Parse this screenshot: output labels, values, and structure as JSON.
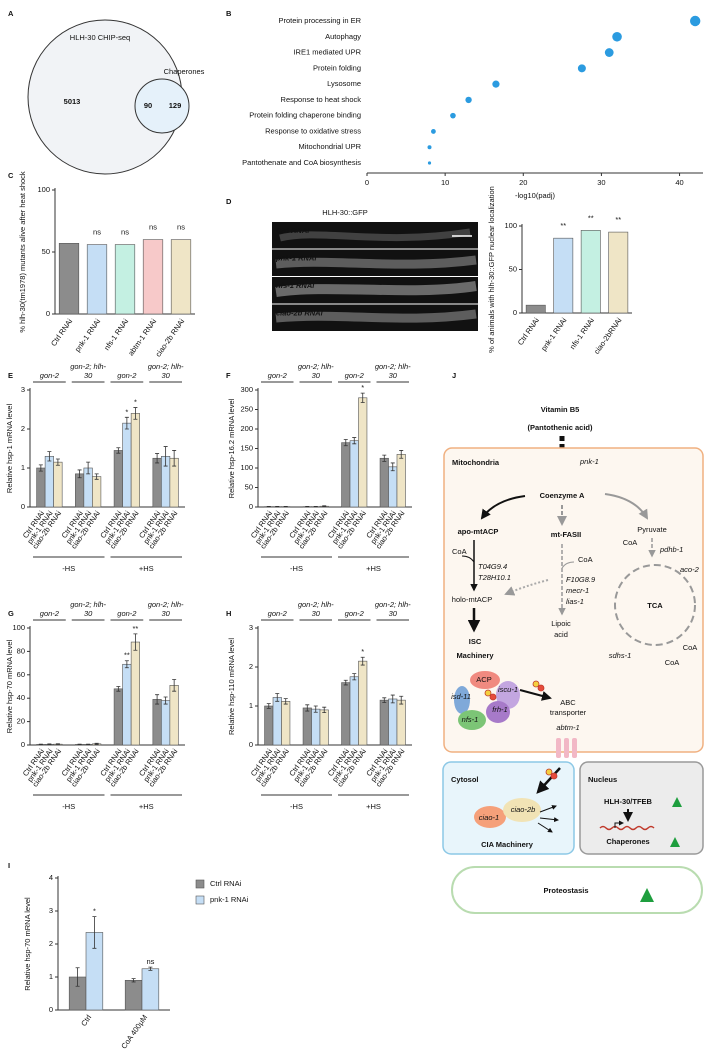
{
  "panel_labels": [
    "A",
    "B",
    "C",
    "D",
    "E",
    "F",
    "G",
    "H",
    "I",
    "J"
  ],
  "venn": {
    "title": "HLH-30 CHIP-seq",
    "set_label": "Chaperones",
    "counts": [
      5013,
      90,
      129
    ]
  },
  "micrograph": {
    "title": "HLH-30::GFP",
    "labels": [
      "Ctrl RNAi",
      "pnk-1 RNAi",
      "nfs-1 RNAi",
      "ciao-2b RNAi"
    ]
  },
  "chart_data": [
    {
      "type": "dot",
      "categories": [
        "Protein processing in ER",
        "Autophagy",
        "IRE1 mediated UPR",
        "Protein folding",
        "Lysosome",
        "Response to heat shock",
        "Protein folding chaperone binding",
        "Response to oxidative stress",
        "Mitochondrial UPR",
        "Pantothenate and CoA biosynthesis"
      ],
      "values": [
        42,
        32,
        31,
        27.5,
        16.5,
        13,
        11,
        8.5,
        8,
        8
      ],
      "color": "#2b9be0",
      "xlim": [
        0,
        43
      ],
      "xticks": [
        0,
        10,
        20,
        30,
        40
      ],
      "x_label": "-log10(padj)"
    },
    {
      "type": "bar",
      "y_label": "% hlh-30(tm1978) mutants alive after heat shock",
      "categories": [
        "Ctrl RNAi",
        "pnk-1 RNAi",
        "nfs-1 RNAi",
        "abtm-1 RNAi",
        "ciao-2b RNAi"
      ],
      "values": [
        57,
        56,
        56,
        60,
        60
      ],
      "colors": [
        "#8c8c8c",
        "#c5def5",
        "#c4f0e2",
        "#f7c9c9",
        "#efe5c6"
      ],
      "annotations": [
        null,
        "ns",
        "ns",
        "ns",
        "ns"
      ],
      "ylim": [
        0,
        100
      ],
      "yticks": [
        0,
        50,
        100
      ]
    },
    {
      "type": "bar",
      "y_label": "% of animals with hlh-30::GFP nuclear localization",
      "categories": [
        "Ctrl RNAi",
        "pnk-1 RNAi",
        "nfs-1 RNAi",
        "ciao-2bRNAi"
      ],
      "values": [
        9,
        86,
        95,
        93
      ],
      "colors": [
        "#8c8c8c",
        "#c5def5",
        "#c4f0e2",
        "#efe5c6"
      ],
      "annotations": [
        null,
        "**",
        "**",
        "**"
      ],
      "ylim": [
        0,
        100
      ],
      "yticks": [
        0,
        50,
        100
      ]
    },
    {
      "type": "grouped_bar",
      "y_label": "Relative hsp-1 mRNA level",
      "groups": [
        "gon-2",
        "gon-2; hlh-30",
        "gon-2",
        "gon-2; hlh-30"
      ],
      "conditions": [
        "-HS",
        "+HS"
      ],
      "ylim": [
        0,
        3
      ],
      "yticks": [
        0,
        1,
        2,
        3
      ],
      "series": [
        {
          "name": "Ctrl RNAi",
          "color": "#8c8c8c",
          "values": [
            1.0,
            0.85,
            1.45,
            1.25
          ],
          "errors": [
            0.08,
            0.1,
            0.07,
            0.12
          ],
          "annotations": [
            null,
            null,
            null,
            null
          ]
        },
        {
          "name": "pnk-1 RNAi",
          "color": "#c5def5",
          "values": [
            1.3,
            1.0,
            2.15,
            1.3
          ],
          "errors": [
            0.12,
            0.15,
            0.15,
            0.25
          ],
          "annotations": [
            null,
            null,
            "*",
            null
          ]
        },
        {
          "name": "ciao-2b RNAi",
          "color": "#efe5c6",
          "values": [
            1.15,
            0.78,
            2.4,
            1.25
          ],
          "errors": [
            0.08,
            0.07,
            0.15,
            0.2
          ],
          "annotations": [
            null,
            null,
            "*",
            null
          ]
        }
      ]
    },
    {
      "type": "grouped_bar",
      "y_label": "Relative hsp-16.2 mRNA level",
      "groups": [
        "gon-2",
        "gon-2; hlh-30",
        "gon-2",
        "gon-2; hlh-30"
      ],
      "conditions": [
        "-HS",
        "+HS"
      ],
      "ylim": [
        0,
        300
      ],
      "yticks": [
        0,
        50,
        100,
        150,
        200,
        250,
        300
      ],
      "series": [
        {
          "name": "Ctrl RNAi",
          "color": "#8c8c8c",
          "values": [
            1,
            1,
            165,
            125
          ],
          "errors": [
            0.5,
            0.5,
            8,
            8
          ],
          "annotations": [
            null,
            null,
            null,
            null
          ]
        },
        {
          "name": "pnk-1 RNAi",
          "color": "#c5def5",
          "values": [
            1,
            1,
            170,
            103
          ],
          "errors": [
            0.5,
            0.5,
            8,
            10
          ],
          "annotations": [
            null,
            null,
            null,
            null
          ]
        },
        {
          "name": "ciao-2b RNAi",
          "color": "#efe5c6",
          "values": [
            1,
            2,
            280,
            135
          ],
          "errors": [
            0.5,
            1,
            12,
            10
          ],
          "annotations": [
            null,
            null,
            "*",
            null
          ]
        }
      ]
    },
    {
      "type": "grouped_bar",
      "y_label": "Relative hsp-70 mRNA level",
      "groups": [
        "gon-2",
        "gon-2; hlh-30",
        "gon-2",
        "gon-2; hlh-30"
      ],
      "conditions": [
        "-HS",
        "+HS"
      ],
      "ylim": [
        0,
        100
      ],
      "yticks": [
        0,
        20,
        40,
        60,
        80,
        100
      ],
      "series": [
        {
          "name": "Ctrl RNAi",
          "color": "#8c8c8c",
          "values": [
            0.5,
            0.5,
            48,
            39
          ],
          "errors": [
            0.2,
            0.2,
            2,
            4
          ],
          "annotations": [
            null,
            null,
            null,
            null
          ]
        },
        {
          "name": "pnk-1 RNAi",
          "color": "#c5def5",
          "values": [
            0.6,
            0.5,
            69,
            38
          ],
          "errors": [
            0.3,
            0.2,
            3,
            3
          ],
          "annotations": [
            null,
            null,
            "**",
            null
          ]
        },
        {
          "name": "ciao-2b RNAi",
          "color": "#efe5c6",
          "values": [
            0.7,
            1,
            88,
            51
          ],
          "errors": [
            0.3,
            0.5,
            7,
            5
          ],
          "annotations": [
            null,
            null,
            "**",
            null
          ]
        }
      ]
    },
    {
      "type": "grouped_bar",
      "y_label": "Relative hsp-110 mRNA level",
      "groups": [
        "gon-2",
        "gon-2; hlh-30",
        "gon-2",
        "gon-2; hlh-30"
      ],
      "conditions": [
        "-HS",
        "+HS"
      ],
      "ylim": [
        0,
        3
      ],
      "yticks": [
        0,
        1,
        2,
        3
      ],
      "series": [
        {
          "name": "Ctrl RNAi",
          "color": "#8c8c8c",
          "values": [
            1.0,
            0.95,
            1.6,
            1.15
          ],
          "errors": [
            0.06,
            0.08,
            0.06,
            0.06
          ],
          "annotations": [
            null,
            null,
            null,
            null
          ]
        },
        {
          "name": "pnk-1 RNAi",
          "color": "#c5def5",
          "values": [
            1.22,
            0.92,
            1.75,
            1.18
          ],
          "errors": [
            0.1,
            0.08,
            0.08,
            0.1
          ],
          "annotations": [
            null,
            null,
            null,
            null
          ]
        },
        {
          "name": "ciao-2b RNAi",
          "color": "#efe5c6",
          "values": [
            1.12,
            0.9,
            2.15,
            1.15
          ],
          "errors": [
            0.07,
            0.07,
            0.1,
            0.1
          ],
          "annotations": [
            null,
            null,
            "*",
            null
          ]
        }
      ]
    },
    {
      "type": "grouped_bar",
      "y_label": "Relative hsp-70 mRNA level",
      "categories": [
        "Ctrl",
        "CoA 400μM"
      ],
      "ylim": [
        0,
        4
      ],
      "yticks": [
        0,
        1,
        2,
        3,
        4
      ],
      "legend": "right",
      "series": [
        {
          "name": "Ctrl RNAi",
          "color": "#8c8c8c",
          "values": [
            1.0,
            0.9
          ],
          "errors": [
            0.28,
            0.05
          ],
          "annotations": [
            null,
            null
          ]
        },
        {
          "name": "pnk-1 RNAi",
          "color": "#c5def5",
          "values": [
            2.35,
            1.25
          ],
          "errors": [
            0.48,
            0.05
          ],
          "annotations": [
            "*",
            "ns"
          ]
        }
      ]
    }
  ],
  "diagram": {
    "labels": [
      "Vitamin B5",
      "(Pantothenic acid)",
      "Mitochondria",
      "pnk-1",
      "Coenzyme A",
      "apo-mtACP",
      "mt-FASII",
      "Pyruvate",
      "CoA",
      "T04G9.4",
      "T28H10.1",
      "holo-mtACP",
      "CoA",
      "F10G8.9",
      "mecr-1",
      "lias-1",
      "Lipoic",
      "acid",
      "CoA",
      "pdhb-1",
      "aco-2",
      "TCA",
      "sdhs-1",
      "CoA",
      "CoA",
      "ISC",
      "Machinery",
      "ACP",
      "isd-11",
      "iscu-1",
      "nfs-1",
      "frh-1",
      "ABC",
      "transporter",
      "abtm-1",
      "Cytosol",
      "ciao-1",
      "ciao-2b",
      "CIA Machinery",
      "Nucleus",
      "HLH-30/TFEB",
      "Chaperones",
      "Proteostasis"
    ]
  }
}
